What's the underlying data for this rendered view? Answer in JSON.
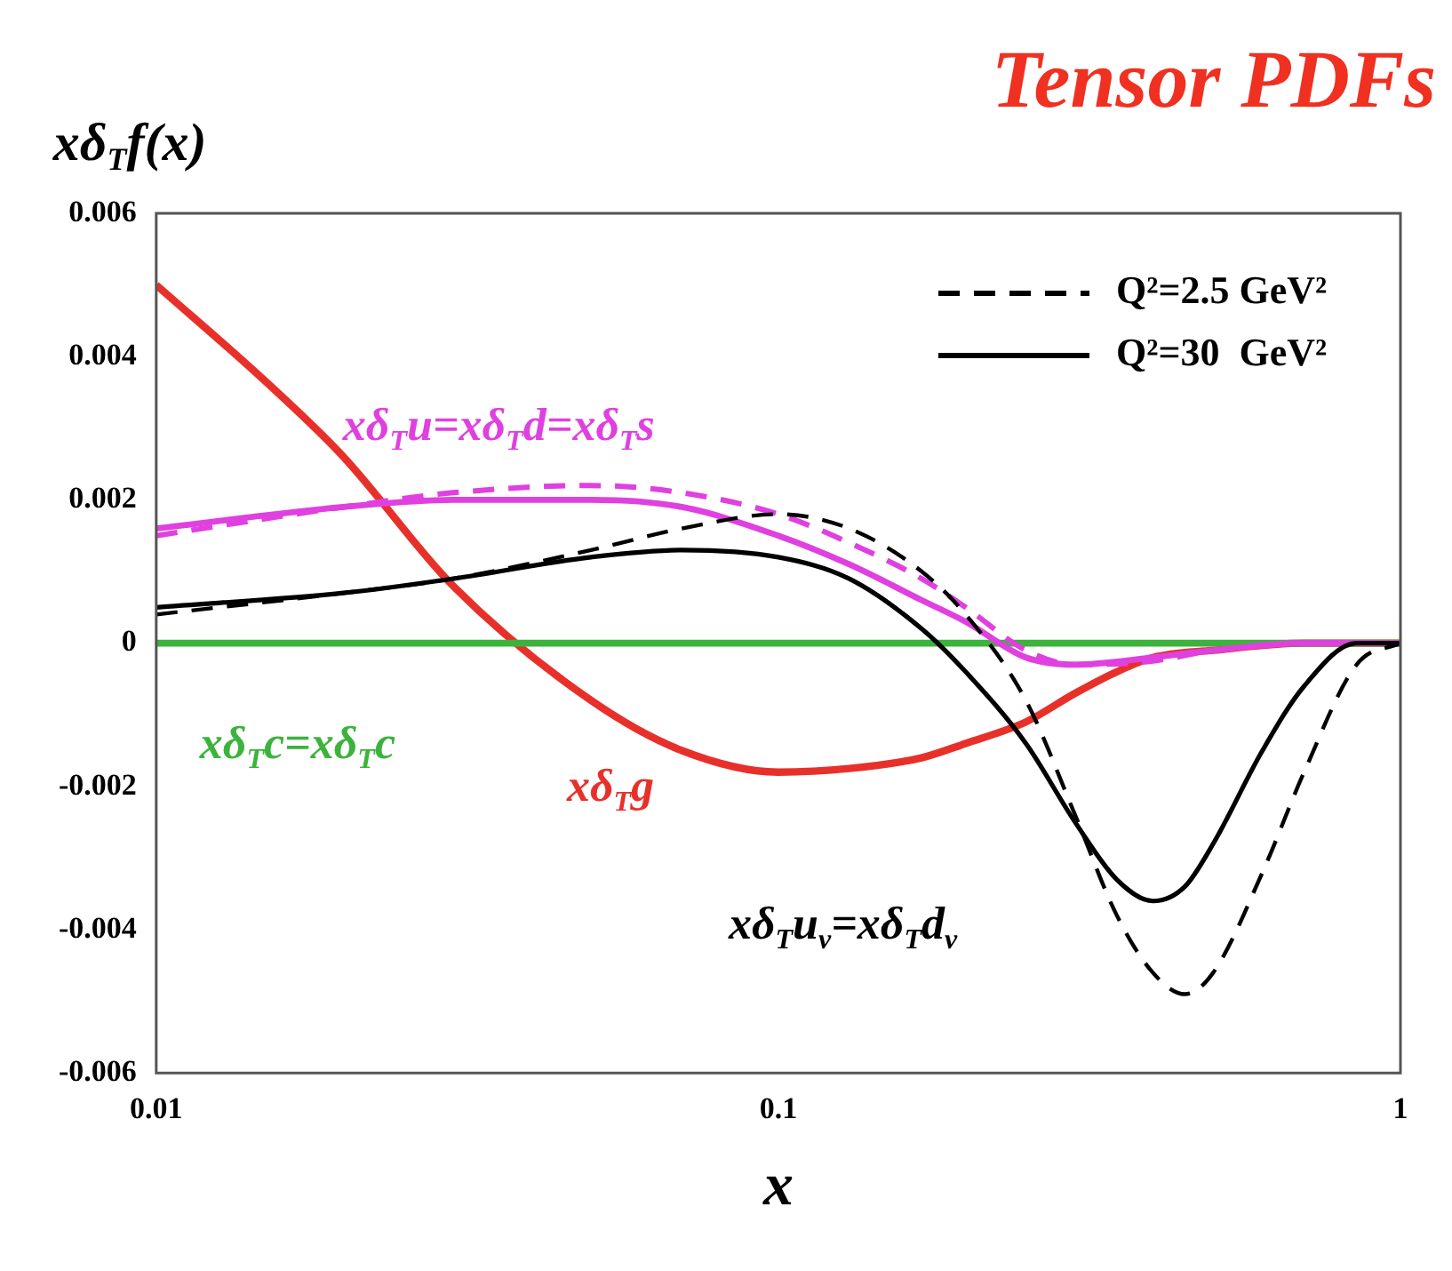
{
  "chart_data": {
    "type": "line",
    "title": "Tensor PDFs",
    "ylabel": "xδ$_{T}$f(x)",
    "xlabel": "x",
    "log": "x",
    "grid": false,
    "legend": "top right",
    "marker": "none",
    "xlim": [
      0.01,
      1
    ],
    "xticks": [
      0.01,
      0.1,
      1
    ],
    "ylim": [
      -0.006,
      0.006
    ],
    "yticks": [
      -0.006,
      -0.004,
      -0.002,
      {
        "value": 0,
        "label": "0"
      },
      0.002,
      0.004,
      0.006
    ],
    "series": [
      {
        "name": "Q²=2.5 GeV²",
        "color": "#000000",
        "line_style": "dashed",
        "x": [
          0.01,
          0.02,
          0.03,
          0.05,
          0.07,
          0.1,
          0.13,
          0.17,
          0.2,
          0.25,
          0.3,
          0.35,
          0.4,
          0.45,
          0.5,
          0.6,
          0.7,
          0.85,
          1
        ],
        "values": [
          0.0004,
          0.0007,
          0.0009,
          0.0013,
          0.0016,
          0.0018,
          0.0016,
          0.001,
          0.0004,
          -0.0008,
          -0.0024,
          -0.0038,
          -0.0046,
          -0.0049,
          -0.0046,
          -0.0032,
          -0.0018,
          -0.0003,
          0
        ]
      },
      {
        "name": "Q²=30  GeV²",
        "color": "#000000",
        "line_style": "solid",
        "x": [
          0.01,
          0.02,
          0.03,
          0.05,
          0.07,
          0.1,
          0.13,
          0.17,
          0.2,
          0.25,
          0.3,
          0.35,
          0.4,
          0.45,
          0.5,
          0.6,
          0.7,
          0.85,
          1
        ],
        "values": [
          0.0005,
          0.0007,
          0.0009,
          0.0012,
          0.0013,
          0.0012,
          0.0009,
          0.0002,
          -0.0004,
          -0.0014,
          -0.0025,
          -0.0033,
          -0.0036,
          -0.0034,
          -0.0028,
          -0.0015,
          -0.0006,
          0,
          0
        ]
      },
      {
        "color": "#e040e0",
        "line_style": "dashed",
        "x": [
          0.01,
          0.02,
          0.03,
          0.05,
          0.07,
          0.1,
          0.13,
          0.17,
          0.2,
          0.25,
          0.3,
          0.4,
          0.5,
          0.7,
          1
        ],
        "values": [
          0.0015,
          0.0019,
          0.0021,
          0.0022,
          0.0021,
          0.0018,
          0.0014,
          0.0009,
          0.0005,
          -0.0001,
          -0.0003,
          -0.00025,
          -0.0001,
          0,
          0
        ]
      },
      {
        "color": "#e040e0",
        "line_style": "solid",
        "x": [
          0.01,
          0.02,
          0.03,
          0.05,
          0.07,
          0.1,
          0.13,
          0.17,
          0.2,
          0.25,
          0.3,
          0.4,
          0.5,
          0.7,
          1
        ],
        "values": [
          0.0016,
          0.0019,
          0.002,
          0.002,
          0.0019,
          0.0015,
          0.0011,
          0.0006,
          0.0003,
          -0.0002,
          -0.0003,
          -0.0002,
          -0.0001,
          0,
          0
        ]
      },
      {
        "color": "#3cb33c",
        "line_style": "solid",
        "x": [
          0.01,
          1
        ],
        "values": [
          0,
          0
        ]
      },
      {
        "color": "#e8302a",
        "line_style": "solid",
        "x": [
          0.01,
          0.015,
          0.02,
          0.03,
          0.05,
          0.07,
          0.1,
          0.13,
          0.17,
          0.2,
          0.25,
          0.3,
          0.35,
          0.4,
          0.5,
          0.7,
          1
        ],
        "values": [
          0.005,
          0.00365,
          0.0026,
          0.0008,
          -0.0008,
          -0.0015,
          -0.0018,
          -0.00175,
          -0.0016,
          -0.0014,
          -0.0011,
          -0.0007,
          -0.0004,
          -0.0002,
          -0.0001,
          0,
          0
        ]
      }
    ],
    "annotations": [
      "xδ$_{T}$u=xδ$_{T}$d=xδ$_{T}$s",
      "xδ$_{T}$c=xδ$_{T}$c",
      "xδ$_{T}$g",
      "xδ$_{T}$u$_{v}$=xδ$_{T}$d$_{v}$"
    ]
  }
}
